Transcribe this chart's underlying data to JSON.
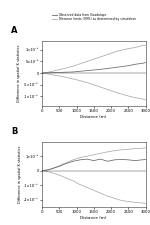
{
  "legend_labels": [
    "Observed data from Guadalupe",
    "Tolerance limits (99%) as determined by simulation"
  ],
  "legend_colors": [
    "#666666",
    "#aaaaaa"
  ],
  "xlabel": "Distance (m)",
  "ylabel": "Difference in spatial K statistics",
  "x_ticks": [
    0,
    500,
    1000,
    1500,
    2000,
    2500,
    3000
  ],
  "x_tick_labels": [
    "0",
    "500",
    "1000",
    "1500",
    "2000",
    "2500",
    "3000"
  ],
  "panel_A": {
    "label": "A",
    "ylim": [
      -1.4e-05,
      1.4e-05
    ],
    "yticks": [
      -1e-05,
      -5e-06,
      0,
      5e-06,
      1e-05
    ],
    "ytick_labels": [
      "-1×10⁻⁵",
      "-5×10⁻⁶",
      "0",
      "5×10⁻⁶",
      "1×10⁻⁵"
    ],
    "obs_x": [
      0,
      150,
      300,
      500,
      700,
      900,
      1100,
      1400,
      1600,
      1800,
      2000,
      2200,
      2500,
      2700,
      2900,
      3000
    ],
    "obs_y": [
      0,
      1e-07,
      2e-07,
      3e-07,
      4e-07,
      5e-07,
      8e-07,
      1.2e-06,
      1.5e-06,
      1.8e-06,
      2.2e-06,
      2.6e-06,
      3.2e-06,
      3.8e-06,
      4.2e-06,
      4.5e-06
    ],
    "tol_upper_x": [
      0,
      150,
      300,
      500,
      700,
      900,
      1100,
      1400,
      1600,
      1800,
      2000,
      2200,
      2500,
      2700,
      2900,
      3000
    ],
    "tol_upper_y": [
      0,
      3e-07,
      8e-07,
      1.5e-06,
      2.2e-06,
      3e-06,
      4e-06,
      5.5e-06,
      6.5e-06,
      7.5e-06,
      8.5e-06,
      9.5e-06,
      1.05e-05,
      1.1e-05,
      1.18e-05,
      1.2e-05
    ],
    "tol_lower_x": [
      0,
      150,
      300,
      500,
      700,
      900,
      1100,
      1400,
      1600,
      1800,
      2000,
      2200,
      2500,
      2700,
      2900,
      3000
    ],
    "tol_lower_y": [
      0,
      -3e-07,
      -7e-07,
      -1.2e-06,
      -1.8e-06,
      -2.5e-06,
      -3.2e-06,
      -4.5e-06,
      -5.5e-06,
      -6.5e-06,
      -7.5e-06,
      -8.5e-06,
      -9.8e-06,
      -1.05e-05,
      -1.1e-05,
      -1.15e-05
    ]
  },
  "panel_B": {
    "label": "B",
    "ylim": [
      -2.5e-05,
      2e-05
    ],
    "yticks": [
      -2e-05,
      -1e-05,
      0,
      1e-05
    ],
    "ytick_labels": [
      "-2×10⁻⁵",
      "-1×10⁻⁵",
      "0",
      "1×10⁻⁵"
    ],
    "obs_x": [
      0,
      150,
      300,
      500,
      700,
      900,
      1100,
      1300,
      1500,
      1700,
      1900,
      2100,
      2300,
      2500,
      2700,
      2900,
      3000
    ],
    "obs_y": [
      0,
      5e-07,
      1.5e-06,
      3e-06,
      5e-06,
      6.5e-06,
      7.5e-06,
      8e-06,
      7e-06,
      8e-06,
      6.5e-06,
      7.5e-06,
      7.8e-06,
      7.5e-06,
      7e-06,
      7.5e-06,
      7.8e-06
    ],
    "tol_upper_x": [
      0,
      150,
      300,
      500,
      700,
      900,
      1100,
      1300,
      1500,
      1700,
      1900,
      2100,
      2300,
      2500,
      2700,
      2900,
      3000
    ],
    "tol_upper_y": [
      0,
      5e-07,
      1.5e-06,
      3.5e-06,
      5.5e-06,
      7.5e-06,
      9e-06,
      1e-05,
      1.1e-05,
      1.2e-05,
      1.3e-05,
      1.38e-05,
      1.44e-05,
      1.48e-05,
      1.52e-05,
      1.55e-05,
      1.58e-05
    ],
    "tol_lower_x": [
      0,
      150,
      300,
      500,
      700,
      900,
      1100,
      1300,
      1500,
      1700,
      1900,
      2100,
      2300,
      2500,
      2700,
      2900,
      3000
    ],
    "tol_lower_y": [
      0,
      -5e-07,
      -1.5e-06,
      -3e-06,
      -5e-06,
      -7e-06,
      -9.5e-06,
      -1.15e-05,
      -1.35e-05,
      -1.55e-05,
      -1.75e-05,
      -1.9e-05,
      -2.05e-05,
      -2.12e-05,
      -2.18e-05,
      -2.22e-05,
      -2.25e-05
    ]
  }
}
